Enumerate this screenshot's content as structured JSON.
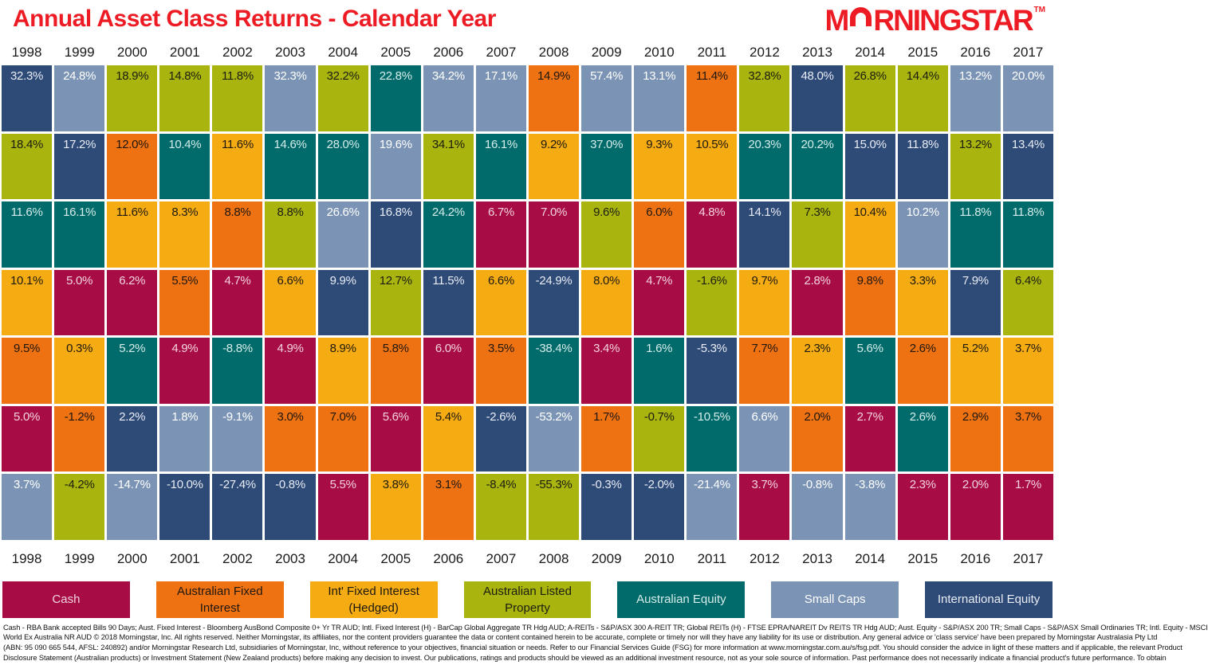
{
  "title": "Annual Asset Class Returns - Calendar Year",
  "logo": {
    "m": "M",
    "rest": "RNINGSTAR",
    "tm": "TM",
    "o_icon": "morningstar-arc",
    "color": "#ED1C24"
  },
  "accent_color": "#ED1C24",
  "years": [
    "1998",
    "1999",
    "2000",
    "2001",
    "2002",
    "2003",
    "2004",
    "2005",
    "2006",
    "2007",
    "2008",
    "2009",
    "2010",
    "2011",
    "2012",
    "2013",
    "2014",
    "2015",
    "2016",
    "2017"
  ],
  "asset_classes": [
    {
      "id": "cash",
      "label": "Cash",
      "color": "#A70C44",
      "text_color": "#F3D3DF"
    },
    {
      "id": "afi",
      "label": "Australian Fixed Interest",
      "color": "#EE7212",
      "text_color": "#1E1710"
    },
    {
      "id": "ifi",
      "label": "Int' Fixed Interest (Hedged)",
      "color": "#F5AB12",
      "text_color": "#1E1910"
    },
    {
      "id": "alp",
      "label": "Australian Listed Property",
      "color": "#A9B40E",
      "text_color": "#1C1D10"
    },
    {
      "id": "ae",
      "label": "Australian Equity",
      "color": "#006B6A",
      "text_color": "#D5ECEA"
    },
    {
      "id": "sc",
      "label": "Small Caps",
      "color": "#7B94B5",
      "text_color": "#FFFFFF"
    },
    {
      "id": "ie",
      "label": "International Equity",
      "color": "#2E4A77",
      "text_color": "#E9EDF5"
    }
  ],
  "chart_data": {
    "type": "table",
    "title": "Annual Asset Class Returns - Calendar Year",
    "description": "Periodic-table style chart: for each calendar year, the seven asset classes are stacked in descending order of annual return (%).",
    "legend_position": "bottom",
    "categories": [
      "1998",
      "1999",
      "2000",
      "2001",
      "2002",
      "2003",
      "2004",
      "2005",
      "2006",
      "2007",
      "2008",
      "2009",
      "2010",
      "2011",
      "2012",
      "2013",
      "2014",
      "2015",
      "2016",
      "2017"
    ],
    "columns": [
      {
        "year": "1998",
        "cells": [
          {
            "asset": "ie",
            "value": 32.3
          },
          {
            "asset": "alp",
            "value": 18.4
          },
          {
            "asset": "ae",
            "value": 11.6
          },
          {
            "asset": "ifi",
            "value": 10.1
          },
          {
            "asset": "afi",
            "value": 9.5
          },
          {
            "asset": "cash",
            "value": 5.0
          },
          {
            "asset": "sc",
            "value": 3.7
          }
        ]
      },
      {
        "year": "1999",
        "cells": [
          {
            "asset": "sc",
            "value": 24.8
          },
          {
            "asset": "ie",
            "value": 17.2
          },
          {
            "asset": "ae",
            "value": 16.1
          },
          {
            "asset": "cash",
            "value": 5.0
          },
          {
            "asset": "ifi",
            "value": 0.3
          },
          {
            "asset": "afi",
            "value": -1.2
          },
          {
            "asset": "alp",
            "value": -4.2
          }
        ]
      },
      {
        "year": "2000",
        "cells": [
          {
            "asset": "alp",
            "value": 18.9
          },
          {
            "asset": "afi",
            "value": 12.0
          },
          {
            "asset": "ifi",
            "value": 11.6
          },
          {
            "asset": "cash",
            "value": 6.2
          },
          {
            "asset": "ae",
            "value": 5.2
          },
          {
            "asset": "ie",
            "value": 2.2
          },
          {
            "asset": "sc",
            "value": -14.7
          }
        ]
      },
      {
        "year": "2001",
        "cells": [
          {
            "asset": "alp",
            "value": 14.8
          },
          {
            "asset": "ae",
            "value": 10.4
          },
          {
            "asset": "ifi",
            "value": 8.3
          },
          {
            "asset": "afi",
            "value": 5.5
          },
          {
            "asset": "cash",
            "value": 4.9
          },
          {
            "asset": "sc",
            "value": 1.8
          },
          {
            "asset": "ie",
            "value": -10.0
          }
        ]
      },
      {
        "year": "2002",
        "cells": [
          {
            "asset": "alp",
            "value": 11.8
          },
          {
            "asset": "ifi",
            "value": 11.6
          },
          {
            "asset": "afi",
            "value": 8.8
          },
          {
            "asset": "cash",
            "value": 4.7
          },
          {
            "asset": "ae",
            "value": -8.8
          },
          {
            "asset": "sc",
            "value": -9.1
          },
          {
            "asset": "ie",
            "value": -27.4
          }
        ]
      },
      {
        "year": "2003",
        "cells": [
          {
            "asset": "sc",
            "value": 32.3
          },
          {
            "asset": "ae",
            "value": 14.6
          },
          {
            "asset": "alp",
            "value": 8.8
          },
          {
            "asset": "ifi",
            "value": 6.6
          },
          {
            "asset": "cash",
            "value": 4.9
          },
          {
            "asset": "afi",
            "value": 3.0
          },
          {
            "asset": "ie",
            "value": -0.8
          }
        ]
      },
      {
        "year": "2004",
        "cells": [
          {
            "asset": "alp",
            "value": 32.2
          },
          {
            "asset": "ae",
            "value": 28.0
          },
          {
            "asset": "sc",
            "value": 26.6
          },
          {
            "asset": "ie",
            "value": 9.9
          },
          {
            "asset": "ifi",
            "value": 8.9
          },
          {
            "asset": "afi",
            "value": 7.0
          },
          {
            "asset": "cash",
            "value": 5.5
          }
        ]
      },
      {
        "year": "2005",
        "cells": [
          {
            "asset": "ae",
            "value": 22.8
          },
          {
            "asset": "sc",
            "value": 19.6
          },
          {
            "asset": "ie",
            "value": 16.8
          },
          {
            "asset": "alp",
            "value": 12.7
          },
          {
            "asset": "afi",
            "value": 5.8
          },
          {
            "asset": "cash",
            "value": 5.6
          },
          {
            "asset": "ifi",
            "value": 3.8
          }
        ]
      },
      {
        "year": "2006",
        "cells": [
          {
            "asset": "sc",
            "value": 34.2
          },
          {
            "asset": "alp",
            "value": 34.1
          },
          {
            "asset": "ae",
            "value": 24.2
          },
          {
            "asset": "ie",
            "value": 11.5
          },
          {
            "asset": "cash",
            "value": 6.0
          },
          {
            "asset": "ifi",
            "value": 5.4
          },
          {
            "asset": "afi",
            "value": 3.1
          }
        ]
      },
      {
        "year": "2007",
        "cells": [
          {
            "asset": "sc",
            "value": 17.1
          },
          {
            "asset": "ae",
            "value": 16.1
          },
          {
            "asset": "cash",
            "value": 6.7
          },
          {
            "asset": "ifi",
            "value": 6.6
          },
          {
            "asset": "afi",
            "value": 3.5
          },
          {
            "asset": "ie",
            "value": -2.6
          },
          {
            "asset": "alp",
            "value": -8.4
          }
        ]
      },
      {
        "year": "2008",
        "cells": [
          {
            "asset": "afi",
            "value": 14.9
          },
          {
            "asset": "ifi",
            "value": 9.2
          },
          {
            "asset": "cash",
            "value": 7.0
          },
          {
            "asset": "ie",
            "value": -24.9
          },
          {
            "asset": "ae",
            "value": -38.4
          },
          {
            "asset": "sc",
            "value": -53.2
          },
          {
            "asset": "alp",
            "value": -55.3
          }
        ]
      },
      {
        "year": "2009",
        "cells": [
          {
            "asset": "sc",
            "value": 57.4
          },
          {
            "asset": "ae",
            "value": 37.0
          },
          {
            "asset": "alp",
            "value": 9.6
          },
          {
            "asset": "ifi",
            "value": 8.0
          },
          {
            "asset": "cash",
            "value": 3.4
          },
          {
            "asset": "afi",
            "value": 1.7
          },
          {
            "asset": "ie",
            "value": -0.3
          }
        ]
      },
      {
        "year": "2010",
        "cells": [
          {
            "asset": "sc",
            "value": 13.1
          },
          {
            "asset": "ifi",
            "value": 9.3
          },
          {
            "asset": "afi",
            "value": 6.0
          },
          {
            "asset": "cash",
            "value": 4.7
          },
          {
            "asset": "ae",
            "value": 1.6
          },
          {
            "asset": "alp",
            "value": -0.7
          },
          {
            "asset": "ie",
            "value": -2.0
          }
        ]
      },
      {
        "year": "2011",
        "cells": [
          {
            "asset": "afi",
            "value": 11.4
          },
          {
            "asset": "ifi",
            "value": 10.5
          },
          {
            "asset": "cash",
            "value": 4.8
          },
          {
            "asset": "alp",
            "value": -1.6
          },
          {
            "asset": "ie",
            "value": -5.3
          },
          {
            "asset": "ae",
            "value": -10.5
          },
          {
            "asset": "sc",
            "value": -21.4
          }
        ]
      },
      {
        "year": "2012",
        "cells": [
          {
            "asset": "alp",
            "value": 32.8
          },
          {
            "asset": "ae",
            "value": 20.3
          },
          {
            "asset": "ie",
            "value": 14.1
          },
          {
            "asset": "ifi",
            "value": 9.7
          },
          {
            "asset": "afi",
            "value": 7.7
          },
          {
            "asset": "sc",
            "value": 6.6
          },
          {
            "asset": "cash",
            "value": 3.7
          }
        ]
      },
      {
        "year": "2013",
        "cells": [
          {
            "asset": "ie",
            "value": 48.0
          },
          {
            "asset": "ae",
            "value": 20.2
          },
          {
            "asset": "alp",
            "value": 7.3
          },
          {
            "asset": "cash",
            "value": 2.8
          },
          {
            "asset": "ifi",
            "value": 2.3
          },
          {
            "asset": "afi",
            "value": 2.0
          },
          {
            "asset": "sc",
            "value": -0.8
          }
        ]
      },
      {
        "year": "2014",
        "cells": [
          {
            "asset": "alp",
            "value": 26.8
          },
          {
            "asset": "ie",
            "value": 15.0
          },
          {
            "asset": "ifi",
            "value": 10.4
          },
          {
            "asset": "afi",
            "value": 9.8
          },
          {
            "asset": "ae",
            "value": 5.6
          },
          {
            "asset": "cash",
            "value": 2.7
          },
          {
            "asset": "sc",
            "value": -3.8
          }
        ]
      },
      {
        "year": "2015",
        "cells": [
          {
            "asset": "alp",
            "value": 14.4
          },
          {
            "asset": "ie",
            "value": 11.8
          },
          {
            "asset": "sc",
            "value": 10.2
          },
          {
            "asset": "ifi",
            "value": 3.3
          },
          {
            "asset": "afi",
            "value": 2.6
          },
          {
            "asset": "ae",
            "value": 2.6
          },
          {
            "asset": "cash",
            "value": 2.3
          }
        ]
      },
      {
        "year": "2016",
        "cells": [
          {
            "asset": "sc",
            "value": 13.2
          },
          {
            "asset": "alp",
            "value": 13.2
          },
          {
            "asset": "ae",
            "value": 11.8
          },
          {
            "asset": "ie",
            "value": 7.9
          },
          {
            "asset": "ifi",
            "value": 5.2
          },
          {
            "asset": "afi",
            "value": 2.9
          },
          {
            "asset": "cash",
            "value": 2.0
          }
        ]
      },
      {
        "year": "2017",
        "cells": [
          {
            "asset": "sc",
            "value": 20.0
          },
          {
            "asset": "ie",
            "value": 13.4
          },
          {
            "asset": "ae",
            "value": 11.8
          },
          {
            "asset": "alp",
            "value": 6.4
          },
          {
            "asset": "ifi",
            "value": 3.7
          },
          {
            "asset": "afi",
            "value": 3.7
          },
          {
            "asset": "cash",
            "value": 1.7
          }
        ]
      }
    ]
  },
  "footer": {
    "lines": [
      "Cash - RBA Bank accepted Bills 90 Days; Aust. Fixed Interest - Bloomberg AusBond Composite 0+ Yr TR AUD; Intl. Fixed Interest (H) - BarCap Global Aggregate TR Hdg AUD; A-REITs - S&P/ASX 300 A-REIT TR; Global REITs (H) - FTSE EPRA/NAREIT Dv REITS TR Hdg AUD; Aust. Equity - S&P/ASX 200 TR; Small Caps - S&P/ASX Small Ordinaries TR; Intl. Equity - MSCI",
      "World Ex Australia NR AUD © 2018 Morningstar, Inc. All rights reserved. Neither Morningstar, its affiliates, nor the content providers guarantee the data or content contained herein to be accurate, complete or timely nor will they have any liability for its use or distribution. Any general advice or 'class service' have been prepared by Morningstar Australasia Pty Ltd",
      "(ABN: 95 090 665 544, AFSL: 240892) and/or Morningstar Research Ltd, subsidiaries of Morningstar, Inc, without reference to your objectives, financial situation or needs. Refer to our Financial Services Guide (FSG) for more information at www.morningstar.com.au/s/fsg.pdf. You should consider the advice in light of these matters and if applicable, the relevant Product",
      "Disclosure Statement (Australian products) or Investment Statement (New Zealand products) before making any decision to invest. Our publications, ratings and products should be viewed as an additional investment resource, not as your sole source of information. Past performance does not necessarily indicate a financial product's future performance. To obtain"
    ]
  }
}
